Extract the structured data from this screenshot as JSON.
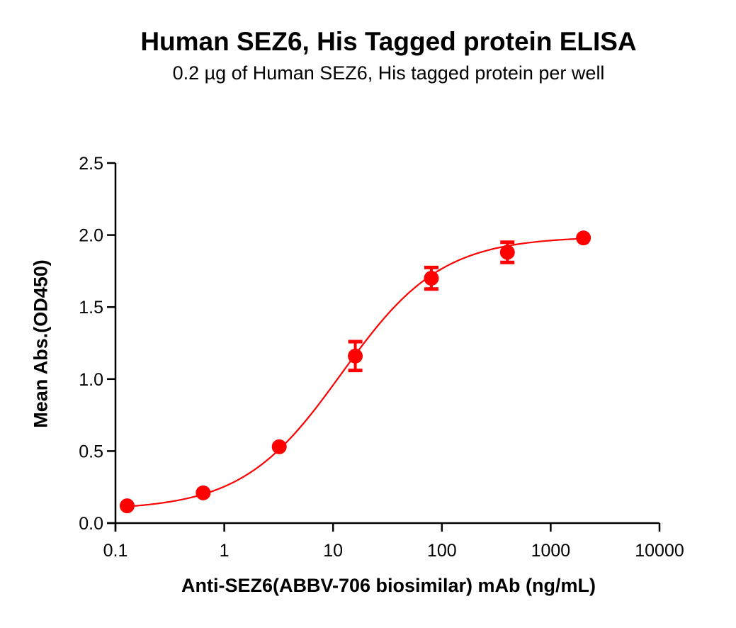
{
  "chart_data": {
    "type": "scatter",
    "title": "Human SEZ6, His Tagged protein ELISA",
    "subtitle": "0.2 µg of Human SEZ6, His tagged protein per well",
    "xlabel": "Anti-SEZ6(ABBV-706 biosimilar) mAb (ng/mL)",
    "ylabel": "Mean Abs.(OD450)",
    "xscale": "log",
    "xlim": [
      0.1,
      10000
    ],
    "ylim": [
      0,
      2.5
    ],
    "x_ticks": [
      0.1,
      1,
      10,
      100,
      1000,
      10000
    ],
    "x_tick_labels": [
      "0.1",
      "1",
      "10",
      "100",
      "1000",
      "10000"
    ],
    "y_ticks": [
      0.0,
      0.5,
      1.0,
      1.5,
      2.0,
      2.5
    ],
    "y_tick_labels": [
      "0.0",
      "0.5",
      "1.0",
      "1.5",
      "2.0",
      "2.5"
    ],
    "grid": false,
    "legend": null,
    "series": [
      {
        "name": "Human SEZ6, His Tagged protein",
        "color": "#ff0000",
        "marker": "circle",
        "x": [
          0.128,
          0.64,
          3.2,
          16,
          80,
          400,
          2000
        ],
        "y": [
          0.12,
          0.21,
          0.53,
          1.16,
          1.7,
          1.88,
          1.98
        ],
        "error": [
          0.01,
          0.01,
          0.01,
          0.1,
          0.075,
          0.07,
          0.01
        ],
        "fit": {
          "model": "4PL",
          "bottom": 0.09,
          "top": 1.99,
          "ec50": 12,
          "hill": 0.95
        }
      }
    ]
  }
}
